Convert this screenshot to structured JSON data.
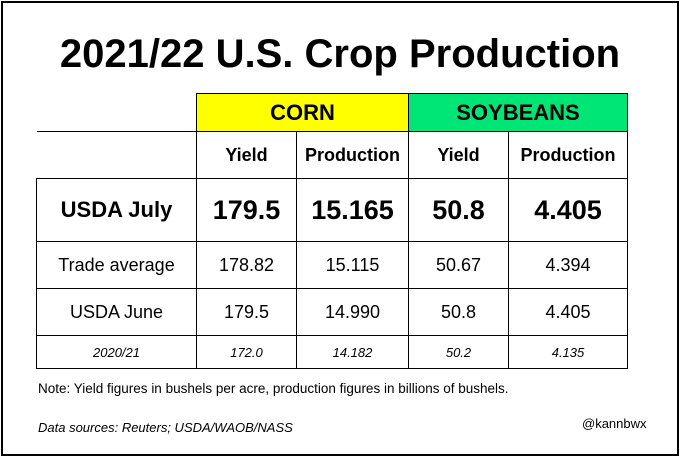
{
  "title": "2021/22 U.S. Crop Production",
  "groups": {
    "corn": "CORN",
    "soybeans": "SOYBEANS"
  },
  "colors": {
    "corn": "#ffff00",
    "soybeans": "#00e676"
  },
  "subheaders": {
    "corn_yield": "Yield",
    "corn_production": "Production",
    "soy_yield": "Yield",
    "soy_production": "Production"
  },
  "rows": [
    {
      "label": "USDA July",
      "corn_yield": "179.5",
      "corn_production": "15.165",
      "soy_yield": "50.8",
      "soy_production": "4.405"
    },
    {
      "label": "Trade average",
      "corn_yield": "178.82",
      "corn_production": "15.115",
      "soy_yield": "50.67",
      "soy_production": "4.394"
    },
    {
      "label": "USDA June",
      "corn_yield": "179.5",
      "corn_production": "14.990",
      "soy_yield": "50.8",
      "soy_production": "4.405"
    },
    {
      "label": "2020/21",
      "corn_yield": "172.0",
      "corn_production": "14.182",
      "soy_yield": "50.2",
      "soy_production": "4.135"
    }
  ],
  "note": "Note: Yield figures in bushels per acre, production figures in billions of bushels.",
  "source": "Data sources: Reuters; USDA/WAOB/NASS",
  "handle": "@kannbwx"
}
